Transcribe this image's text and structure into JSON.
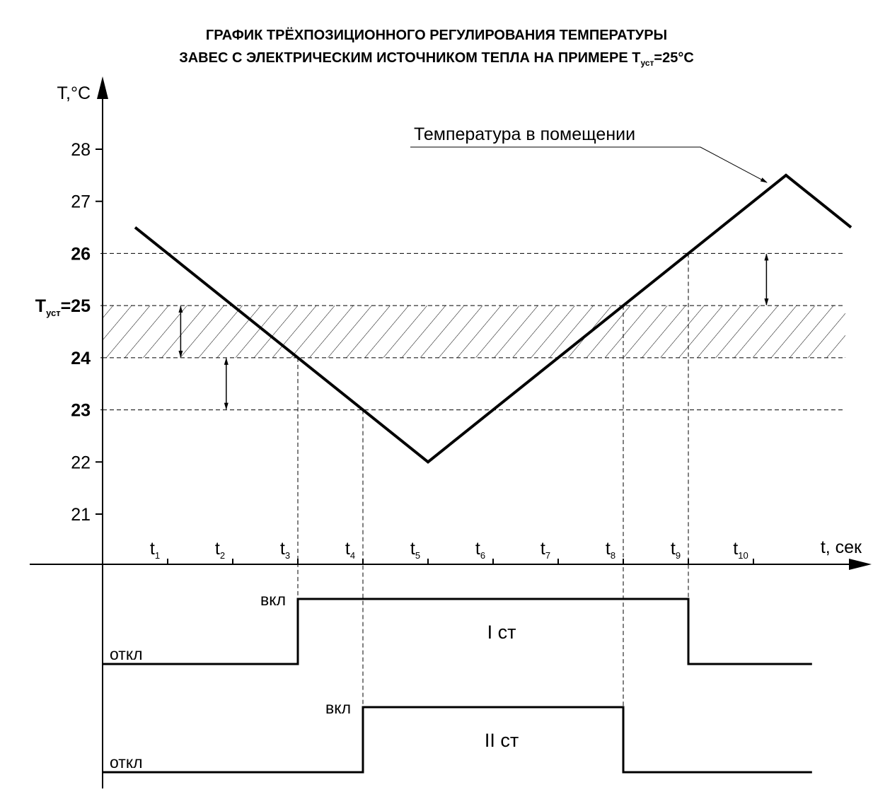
{
  "chart_data": {
    "type": "line",
    "title": {
      "line1": "ГРАФИК ТРЁХПОЗИЦИОННОГО РЕГУЛИРОВАНИЯ ТЕМПЕРАТУРЫ",
      "line2": "ЗАВЕС С ЭЛЕКТРИЧЕСКИМ ИСТОЧНИКОМ ТЕПЛА НА ПРИМЕРЕ T",
      "line2_sub": "уст",
      "line2_end": "=25°C"
    },
    "y_label": "T,°C",
    "x_label": "t, сек",
    "xtick_symbol": "t",
    "xticks": [
      1,
      2,
      3,
      4,
      5,
      6,
      7,
      8,
      9,
      10
    ],
    "xlim": [
      0,
      11.5
    ],
    "ylim": [
      21,
      28
    ],
    "yticks": [
      21,
      22,
      23,
      24,
      {
        "value": 25,
        "label": "=25"
      },
      26,
      27,
      28
    ],
    "setpoint_symbol": "T",
    "setpoint_sub": "уст",
    "reference_lines": [
      23,
      24,
      25,
      26
    ],
    "band": [
      24,
      25
    ],
    "gap_arrows": [
      {
        "x": 1.2,
        "from": 24,
        "to": 25
      },
      {
        "x": 1.9,
        "from": 23,
        "to": 24
      },
      {
        "x": 10.2,
        "from": 25,
        "to": 26
      }
    ],
    "series": [
      {
        "name": "Температура в помещении",
        "color": "#000000",
        "x": [
          0.5,
          5,
          10.5,
          11.5
        ],
        "values": [
          26.5,
          22,
          27.5,
          26.5
        ]
      }
    ],
    "stages": [
      {
        "name": "I ст",
        "on_label": "вкл",
        "off_label": "откл",
        "on": 3,
        "off": 9,
        "end": 10.9
      },
      {
        "name": "II ст",
        "on_label": "вкл",
        "off_label": "откл",
        "on": 4,
        "off": 8,
        "end": 10.9
      }
    ]
  }
}
